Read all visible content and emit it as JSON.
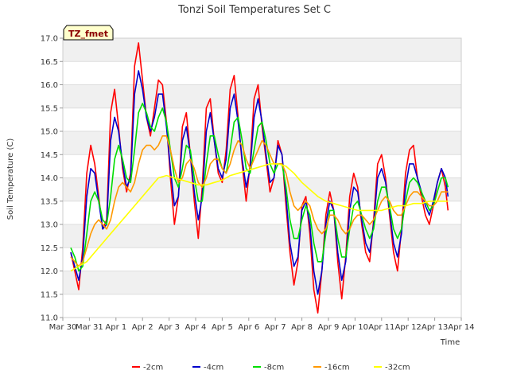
{
  "chart_data": {
    "type": "line",
    "title": "Tonzi Soil Temperatures Set C",
    "xlabel": "Time",
    "ylabel": "Soil Temperature (C)",
    "ylim": [
      11.0,
      17.0
    ],
    "xlim": [
      0,
      15
    ],
    "yticks": [
      "11.0",
      "11.5",
      "12.0",
      "12.5",
      "13.0",
      "13.5",
      "14.0",
      "14.5",
      "15.0",
      "15.5",
      "16.0",
      "16.5",
      "17.0"
    ],
    "xticks": [
      {
        "x": 0,
        "label": "Mar 30"
      },
      {
        "x": 1,
        "label": "Mar 31"
      },
      {
        "x": 2,
        "label": "Apr 1"
      },
      {
        "x": 3,
        "label": "Apr 2"
      },
      {
        "x": 4,
        "label": "Apr 3"
      },
      {
        "x": 5,
        "label": "Apr 4"
      },
      {
        "x": 6,
        "label": "Apr 5"
      },
      {
        "x": 7,
        "label": "Apr 6"
      },
      {
        "x": 8,
        "label": "Apr 7"
      },
      {
        "x": 9,
        "label": "Apr 8"
      },
      {
        "x": 10,
        "label": "Apr 9"
      },
      {
        "x": 11,
        "label": "Apr 10"
      },
      {
        "x": 12,
        "label": "Apr 11"
      },
      {
        "x": 13,
        "label": "Apr 12"
      },
      {
        "x": 14,
        "label": "Apr 13"
      },
      {
        "x": 15,
        "label": "Apr 14"
      }
    ],
    "grid": "horizontal bands",
    "legend_position": "bottom",
    "badge": "TZ_fmet",
    "series": [
      {
        "name": "-2cm",
        "color": "#ff0000",
        "x": [
          0.3,
          0.45,
          0.6,
          0.75,
          0.9,
          1.05,
          1.2,
          1.35,
          1.5,
          1.65,
          1.8,
          1.95,
          2.1,
          2.25,
          2.4,
          2.55,
          2.7,
          2.85,
          3.0,
          3.15,
          3.3,
          3.45,
          3.6,
          3.75,
          3.9,
          4.05,
          4.2,
          4.35,
          4.5,
          4.65,
          4.8,
          4.95,
          5.1,
          5.25,
          5.4,
          5.55,
          5.7,
          5.85,
          6.0,
          6.15,
          6.3,
          6.45,
          6.6,
          6.75,
          6.9,
          7.05,
          7.2,
          7.35,
          7.5,
          7.65,
          7.8,
          7.95,
          8.1,
          8.25,
          8.4,
          8.55,
          8.7,
          8.85,
          9.0,
          9.15,
          9.3,
          9.45,
          9.6,
          9.75,
          9.9,
          10.05,
          10.2,
          10.35,
          10.5,
          10.65,
          10.8,
          10.95,
          11.1,
          11.25,
          11.4,
          11.55,
          11.7,
          11.85,
          12.0,
          12.15,
          12.3,
          12.45,
          12.6,
          12.75,
          12.9,
          13.05,
          13.2,
          13.35,
          13.5,
          13.65,
          13.8,
          13.95,
          14.1,
          14.25,
          14.4,
          14.5
        ],
        "y": [
          12.4,
          12.0,
          11.6,
          12.5,
          14.1,
          14.7,
          14.3,
          13.6,
          12.9,
          13.1,
          15.4,
          15.9,
          15.1,
          14.2,
          13.7,
          14.1,
          16.4,
          16.9,
          16.1,
          15.3,
          14.9,
          15.5,
          16.1,
          16.0,
          15.2,
          14.0,
          13.0,
          13.6,
          15.1,
          15.4,
          14.5,
          13.5,
          12.7,
          13.8,
          15.5,
          15.7,
          14.8,
          14.1,
          13.9,
          14.6,
          15.9,
          16.2,
          15.3,
          14.3,
          13.5,
          14.3,
          15.7,
          16.0,
          15.1,
          14.4,
          13.7,
          14.0,
          14.8,
          14.5,
          13.4,
          12.4,
          11.7,
          12.2,
          13.4,
          13.6,
          12.8,
          11.6,
          11.1,
          12.0,
          13.2,
          13.7,
          13.3,
          12.2,
          11.4,
          12.3,
          13.6,
          14.1,
          13.8,
          13.0,
          12.4,
          12.2,
          13.1,
          14.3,
          14.5,
          14.0,
          13.2,
          12.4,
          12.0,
          12.9,
          14.1,
          14.6,
          14.7,
          14.0,
          13.6,
          13.2,
          13.0,
          13.4,
          13.9,
          14.2,
          13.8,
          13.3
        ]
      },
      {
        "name": "-4cm",
        "color": "#0000cc",
        "x": [
          0.3,
          0.45,
          0.6,
          0.75,
          0.9,
          1.05,
          1.2,
          1.35,
          1.5,
          1.65,
          1.8,
          1.95,
          2.1,
          2.25,
          2.4,
          2.55,
          2.7,
          2.85,
          3.0,
          3.15,
          3.3,
          3.45,
          3.6,
          3.75,
          3.9,
          4.05,
          4.2,
          4.35,
          4.5,
          4.65,
          4.8,
          4.95,
          5.1,
          5.25,
          5.4,
          5.55,
          5.7,
          5.85,
          6.0,
          6.15,
          6.3,
          6.45,
          6.6,
          6.75,
          6.9,
          7.05,
          7.2,
          7.35,
          7.5,
          7.65,
          7.8,
          7.95,
          8.1,
          8.25,
          8.4,
          8.55,
          8.7,
          8.85,
          9.0,
          9.15,
          9.3,
          9.45,
          9.6,
          9.75,
          9.9,
          10.05,
          10.2,
          10.35,
          10.5,
          10.65,
          10.8,
          10.95,
          11.1,
          11.25,
          11.4,
          11.55,
          11.7,
          11.85,
          12.0,
          12.15,
          12.3,
          12.45,
          12.6,
          12.75,
          12.9,
          13.05,
          13.2,
          13.35,
          13.5,
          13.65,
          13.8,
          13.95,
          14.1,
          14.25,
          14.4,
          14.5
        ],
        "y": [
          12.4,
          12.1,
          11.8,
          12.3,
          13.6,
          14.2,
          14.1,
          13.5,
          12.9,
          13.0,
          14.8,
          15.3,
          15.0,
          14.3,
          13.8,
          14.0,
          15.8,
          16.3,
          15.9,
          15.3,
          15.0,
          15.3,
          15.8,
          15.8,
          15.1,
          14.2,
          13.4,
          13.6,
          14.8,
          15.1,
          14.5,
          13.7,
          13.1,
          13.6,
          15.0,
          15.4,
          14.8,
          14.2,
          14.0,
          14.4,
          15.5,
          15.8,
          15.2,
          14.4,
          13.8,
          14.2,
          15.3,
          15.7,
          15.2,
          14.5,
          13.9,
          14.0,
          14.7,
          14.5,
          13.6,
          12.6,
          12.1,
          12.3,
          13.3,
          13.5,
          13.0,
          12.0,
          11.5,
          12.0,
          13.0,
          13.5,
          13.3,
          12.4,
          11.8,
          12.2,
          13.3,
          13.8,
          13.7,
          13.1,
          12.6,
          12.4,
          13.0,
          14.0,
          14.2,
          13.9,
          13.3,
          12.6,
          12.3,
          12.8,
          13.8,
          14.3,
          14.3,
          14.0,
          13.7,
          13.4,
          13.2,
          13.5,
          13.9,
          14.2,
          14.0,
          13.6
        ]
      },
      {
        "name": "-8cm",
        "color": "#00dd00",
        "x": [
          0.3,
          0.45,
          0.6,
          0.75,
          0.9,
          1.05,
          1.2,
          1.35,
          1.5,
          1.65,
          1.8,
          1.95,
          2.1,
          2.25,
          2.4,
          2.55,
          2.7,
          2.85,
          3.0,
          3.15,
          3.3,
          3.45,
          3.6,
          3.75,
          3.9,
          4.05,
          4.2,
          4.35,
          4.5,
          4.65,
          4.8,
          4.95,
          5.1,
          5.25,
          5.4,
          5.55,
          5.7,
          5.85,
          6.0,
          6.15,
          6.3,
          6.45,
          6.6,
          6.75,
          6.9,
          7.05,
          7.2,
          7.35,
          7.5,
          7.65,
          7.8,
          7.95,
          8.1,
          8.25,
          8.4,
          8.55,
          8.7,
          8.85,
          9.0,
          9.15,
          9.3,
          9.45,
          9.6,
          9.75,
          9.9,
          10.05,
          10.2,
          10.35,
          10.5,
          10.65,
          10.8,
          10.95,
          11.1,
          11.25,
          11.4,
          11.55,
          11.7,
          11.85,
          12.0,
          12.15,
          12.3,
          12.45,
          12.6,
          12.75,
          12.9,
          13.05,
          13.2,
          13.35,
          13.5,
          13.65,
          13.8,
          13.95,
          14.1,
          14.25,
          14.4,
          14.5
        ],
        "y": [
          12.5,
          12.3,
          12.0,
          12.1,
          12.8,
          13.5,
          13.7,
          13.5,
          13.1,
          13.0,
          13.6,
          14.4,
          14.7,
          14.4,
          14.0,
          13.9,
          14.6,
          15.4,
          15.6,
          15.4,
          15.1,
          15.0,
          15.3,
          15.5,
          15.2,
          14.6,
          14.0,
          13.8,
          14.2,
          14.7,
          14.6,
          14.0,
          13.5,
          13.5,
          14.3,
          14.9,
          14.9,
          14.5,
          14.2,
          14.1,
          14.6,
          15.2,
          15.3,
          14.8,
          14.2,
          14.1,
          14.6,
          15.1,
          15.2,
          14.8,
          14.3,
          14.1,
          14.3,
          14.3,
          13.8,
          13.1,
          12.7,
          12.7,
          13.1,
          13.4,
          13.2,
          12.6,
          12.2,
          12.2,
          12.8,
          13.3,
          13.3,
          12.7,
          12.3,
          12.3,
          12.9,
          13.4,
          13.5,
          13.2,
          12.9,
          12.7,
          12.9,
          13.5,
          13.8,
          13.8,
          13.4,
          12.9,
          12.7,
          12.9,
          13.5,
          13.9,
          14.0,
          13.9,
          13.7,
          13.5,
          13.3,
          13.4,
          13.7,
          14.0,
          14.0,
          13.8
        ]
      },
      {
        "name": "-16cm",
        "color": "#ff9900",
        "x": [
          0.3,
          0.45,
          0.6,
          0.75,
          0.9,
          1.05,
          1.2,
          1.35,
          1.5,
          1.65,
          1.8,
          1.95,
          2.1,
          2.25,
          2.4,
          2.55,
          2.7,
          2.85,
          3.0,
          3.15,
          3.3,
          3.45,
          3.6,
          3.75,
          3.9,
          4.05,
          4.2,
          4.35,
          4.5,
          4.65,
          4.8,
          4.95,
          5.1,
          5.25,
          5.4,
          5.55,
          5.7,
          5.85,
          6.0,
          6.15,
          6.3,
          6.45,
          6.6,
          6.75,
          6.9,
          7.05,
          7.2,
          7.35,
          7.5,
          7.65,
          7.8,
          7.95,
          8.1,
          8.25,
          8.4,
          8.55,
          8.7,
          8.85,
          9.0,
          9.15,
          9.3,
          9.45,
          9.6,
          9.75,
          9.9,
          10.05,
          10.2,
          10.35,
          10.5,
          10.65,
          10.8,
          10.95,
          11.1,
          11.25,
          11.4,
          11.55,
          11.7,
          11.85,
          12.0,
          12.15,
          12.3,
          12.45,
          12.6,
          12.75,
          12.9,
          13.05,
          13.2,
          13.35,
          13.5,
          13.65,
          13.8,
          13.95,
          14.1,
          14.25,
          14.4,
          14.5
        ],
        "y": [
          12.3,
          12.2,
          12.1,
          12.2,
          12.5,
          12.8,
          13.0,
          13.1,
          13.0,
          12.9,
          13.1,
          13.5,
          13.8,
          13.9,
          13.8,
          13.7,
          13.9,
          14.3,
          14.6,
          14.7,
          14.7,
          14.6,
          14.7,
          14.9,
          14.9,
          14.6,
          14.2,
          13.9,
          14.0,
          14.3,
          14.4,
          14.2,
          13.9,
          13.8,
          14.0,
          14.3,
          14.4,
          14.4,
          14.2,
          14.1,
          14.3,
          14.6,
          14.8,
          14.7,
          14.4,
          14.2,
          14.4,
          14.6,
          14.8,
          14.7,
          14.5,
          14.3,
          14.3,
          14.3,
          14.1,
          13.7,
          13.4,
          13.3,
          13.4,
          13.5,
          13.4,
          13.1,
          12.9,
          12.8,
          12.9,
          13.2,
          13.2,
          13.1,
          12.9,
          12.8,
          12.9,
          13.1,
          13.2,
          13.2,
          13.1,
          13.0,
          13.1,
          13.3,
          13.5,
          13.6,
          13.5,
          13.3,
          13.2,
          13.2,
          13.4,
          13.6,
          13.7,
          13.7,
          13.6,
          13.5,
          13.4,
          13.4,
          13.5,
          13.7,
          13.7,
          13.7
        ]
      },
      {
        "name": "-32cm",
        "color": "#ffff00",
        "x": [
          0.3,
          0.6,
          0.9,
          1.2,
          1.5,
          1.8,
          2.1,
          2.4,
          2.7,
          3.0,
          3.3,
          3.6,
          3.9,
          4.2,
          4.5,
          4.8,
          5.1,
          5.4,
          5.7,
          6.0,
          6.3,
          6.6,
          6.9,
          7.2,
          7.5,
          7.8,
          8.1,
          8.4,
          8.7,
          9.0,
          9.3,
          9.6,
          9.9,
          10.2,
          10.5,
          10.8,
          11.1,
          11.4,
          11.7,
          12.0,
          12.3,
          12.6,
          12.9,
          13.2,
          13.5,
          13.8,
          14.1,
          14.4,
          14.5
        ],
        "y": [
          12.0,
          12.1,
          12.2,
          12.4,
          12.6,
          12.8,
          13.0,
          13.2,
          13.4,
          13.6,
          13.8,
          14.0,
          14.05,
          14.0,
          13.95,
          13.9,
          13.85,
          13.85,
          13.9,
          13.95,
          14.05,
          14.1,
          14.15,
          14.2,
          14.25,
          14.3,
          14.3,
          14.25,
          14.1,
          13.9,
          13.75,
          13.6,
          13.5,
          13.45,
          13.4,
          13.35,
          13.3,
          13.3,
          13.3,
          13.3,
          13.35,
          13.4,
          13.4,
          13.45,
          13.45,
          13.5,
          13.5,
          13.5,
          13.5
        ]
      }
    ]
  }
}
